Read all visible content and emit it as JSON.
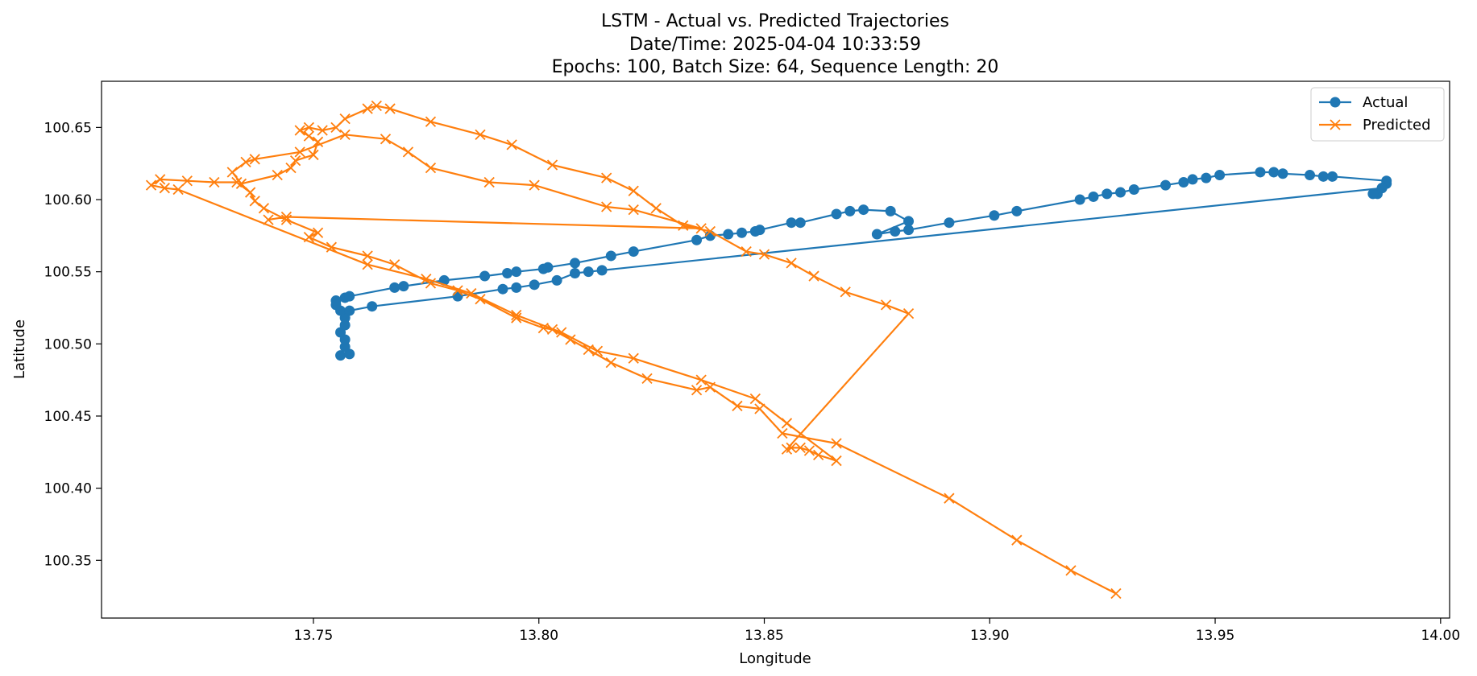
{
  "chart_data": {
    "type": "line",
    "title": [
      "LSTM - Actual vs. Predicted Trajectories",
      "Date/Time: 2025-04-04 10:33:59",
      "Epochs: 100, Batch Size: 64, Sequence Length: 20"
    ],
    "xlabel": "Longitude",
    "ylabel": "Latitude",
    "xlim": [
      13.703,
      14.002
    ],
    "ylim": [
      100.31,
      100.682
    ],
    "xticks": [
      13.75,
      13.8,
      13.85,
      13.9,
      13.95,
      14.0
    ],
    "xtick_labels": [
      "13.75",
      "13.80",
      "13.85",
      "13.90",
      "13.95",
      "14.00"
    ],
    "yticks": [
      100.35,
      100.4,
      100.45,
      100.5,
      100.55,
      100.6,
      100.65
    ],
    "ytick_labels": [
      "100.35",
      "100.40",
      "100.45",
      "100.50",
      "100.55",
      "100.60",
      "100.65"
    ],
    "grid": false,
    "legend_position": "top-right",
    "series": [
      {
        "name": "Actual",
        "color": "#1f77b4",
        "marker": "circle",
        "points": [
          [
            13.756,
            100.492
          ],
          [
            13.758,
            100.493
          ],
          [
            13.757,
            100.498
          ],
          [
            13.757,
            100.503
          ],
          [
            13.756,
            100.508
          ],
          [
            13.757,
            100.513
          ],
          [
            13.757,
            100.518
          ],
          [
            13.756,
            100.523
          ],
          [
            13.755,
            100.527
          ],
          [
            13.755,
            100.53
          ],
          [
            13.757,
            100.532
          ],
          [
            13.758,
            100.533
          ],
          [
            13.768,
            100.539
          ],
          [
            13.77,
            100.54
          ],
          [
            13.779,
            100.544
          ],
          [
            13.788,
            100.547
          ],
          [
            13.793,
            100.549
          ],
          [
            13.795,
            100.55
          ],
          [
            13.801,
            100.552
          ],
          [
            13.802,
            100.553
          ],
          [
            13.808,
            100.556
          ],
          [
            13.816,
            100.561
          ],
          [
            13.821,
            100.564
          ],
          [
            13.835,
            100.572
          ],
          [
            13.838,
            100.575
          ],
          [
            13.842,
            100.576
          ],
          [
            13.845,
            100.577
          ],
          [
            13.848,
            100.578
          ],
          [
            13.849,
            100.579
          ],
          [
            13.856,
            100.584
          ],
          [
            13.858,
            100.584
          ],
          [
            13.866,
            100.59
          ],
          [
            13.869,
            100.592
          ],
          [
            13.872,
            100.593
          ],
          [
            13.878,
            100.592
          ],
          [
            13.882,
            100.585
          ],
          [
            13.875,
            100.576
          ],
          [
            13.879,
            100.578
          ],
          [
            13.882,
            100.579
          ],
          [
            13.891,
            100.584
          ],
          [
            13.901,
            100.589
          ],
          [
            13.906,
            100.592
          ],
          [
            13.92,
            100.6
          ],
          [
            13.923,
            100.602
          ],
          [
            13.926,
            100.604
          ],
          [
            13.929,
            100.605
          ],
          [
            13.932,
            100.607
          ],
          [
            13.939,
            100.61
          ],
          [
            13.943,
            100.612
          ],
          [
            13.945,
            100.614
          ],
          [
            13.948,
            100.615
          ],
          [
            13.951,
            100.617
          ],
          [
            13.96,
            100.619
          ],
          [
            13.963,
            100.619
          ],
          [
            13.965,
            100.618
          ],
          [
            13.971,
            100.617
          ],
          [
            13.974,
            100.616
          ],
          [
            13.976,
            100.616
          ],
          [
            13.988,
            100.613
          ],
          [
            13.988,
            100.611
          ],
          [
            13.987,
            100.608
          ],
          [
            13.986,
            100.604
          ],
          [
            13.985,
            100.604
          ],
          [
            13.987,
            100.608
          ],
          [
            13.814,
            100.551
          ],
          [
            13.811,
            100.55
          ],
          [
            13.808,
            100.549
          ],
          [
            13.804,
            100.544
          ],
          [
            13.799,
            100.541
          ],
          [
            13.795,
            100.539
          ],
          [
            13.792,
            100.538
          ],
          [
            13.782,
            100.533
          ],
          [
            13.763,
            100.526
          ],
          [
            13.758,
            100.523
          ]
        ]
      },
      {
        "name": "Predicted",
        "color": "#ff7f0e",
        "marker": "x",
        "points": [
          [
            13.928,
            100.327
          ],
          [
            13.918,
            100.343
          ],
          [
            13.906,
            100.364
          ],
          [
            13.891,
            100.393
          ],
          [
            13.866,
            100.431
          ],
          [
            13.854,
            100.438
          ],
          [
            13.849,
            100.455
          ],
          [
            13.844,
            100.457
          ],
          [
            13.838,
            100.47
          ],
          [
            13.835,
            100.468
          ],
          [
            13.824,
            100.476
          ],
          [
            13.816,
            100.487
          ],
          [
            13.811,
            100.496
          ],
          [
            13.807,
            100.503
          ],
          [
            13.803,
            100.51
          ],
          [
            13.801,
            100.511
          ],
          [
            13.795,
            100.518
          ],
          [
            13.787,
            100.531
          ],
          [
            13.782,
            100.537
          ],
          [
            13.776,
            100.542
          ],
          [
            13.768,
            100.555
          ],
          [
            13.762,
            100.561
          ],
          [
            13.754,
            100.567
          ],
          [
            13.749,
            100.574
          ],
          [
            13.751,
            100.577
          ],
          [
            13.744,
            100.586
          ],
          [
            13.739,
            100.594
          ],
          [
            13.737,
            100.599
          ],
          [
            13.736,
            100.605
          ],
          [
            13.733,
            100.612
          ],
          [
            13.728,
            100.612
          ],
          [
            13.722,
            100.613
          ],
          [
            13.716,
            100.614
          ],
          [
            13.714,
            100.61
          ],
          [
            13.717,
            100.608
          ],
          [
            13.72,
            100.607
          ],
          [
            13.762,
            100.555
          ],
          [
            13.775,
            100.545
          ],
          [
            13.785,
            100.535
          ],
          [
            13.795,
            100.52
          ],
          [
            13.805,
            100.508
          ],
          [
            13.813,
            100.495
          ],
          [
            13.821,
            100.49
          ],
          [
            13.836,
            100.475
          ],
          [
            13.848,
            100.462
          ],
          [
            13.855,
            100.445
          ],
          [
            13.866,
            100.419
          ],
          [
            13.862,
            100.423
          ],
          [
            13.86,
            100.426
          ],
          [
            13.858,
            100.428
          ],
          [
            13.856,
            100.428
          ],
          [
            13.855,
            100.427
          ],
          [
            13.882,
            100.521
          ],
          [
            13.877,
            100.527
          ],
          [
            13.868,
            100.536
          ],
          [
            13.861,
            100.547
          ],
          [
            13.856,
            100.556
          ],
          [
            13.85,
            100.562
          ],
          [
            13.846,
            100.564
          ],
          [
            13.838,
            100.578
          ],
          [
            13.832,
            100.582
          ],
          [
            13.826,
            100.594
          ],
          [
            13.821,
            100.606
          ],
          [
            13.815,
            100.615
          ],
          [
            13.803,
            100.624
          ],
          [
            13.794,
            100.638
          ],
          [
            13.787,
            100.645
          ],
          [
            13.776,
            100.654
          ],
          [
            13.767,
            100.663
          ],
          [
            13.764,
            100.665
          ],
          [
            13.762,
            100.663
          ],
          [
            13.757,
            100.656
          ],
          [
            13.755,
            100.65
          ],
          [
            13.752,
            100.648
          ],
          [
            13.749,
            100.65
          ],
          [
            13.747,
            100.648
          ],
          [
            13.749,
            100.644
          ],
          [
            13.751,
            100.64
          ],
          [
            13.75,
            100.631
          ],
          [
            13.746,
            100.627
          ],
          [
            13.745,
            100.622
          ],
          [
            13.742,
            100.617
          ],
          [
            13.734,
            100.611
          ],
          [
            13.732,
            100.619
          ],
          [
            13.735,
            100.626
          ],
          [
            13.737,
            100.628
          ],
          [
            13.747,
            100.633
          ],
          [
            13.757,
            100.645
          ],
          [
            13.766,
            100.642
          ],
          [
            13.771,
            100.633
          ],
          [
            13.776,
            100.622
          ],
          [
            13.789,
            100.612
          ],
          [
            13.799,
            100.61
          ],
          [
            13.815,
            100.595
          ],
          [
            13.821,
            100.593
          ],
          [
            13.836,
            100.58
          ],
          [
            13.744,
            100.588
          ],
          [
            13.74,
            100.586
          ]
        ]
      }
    ]
  }
}
